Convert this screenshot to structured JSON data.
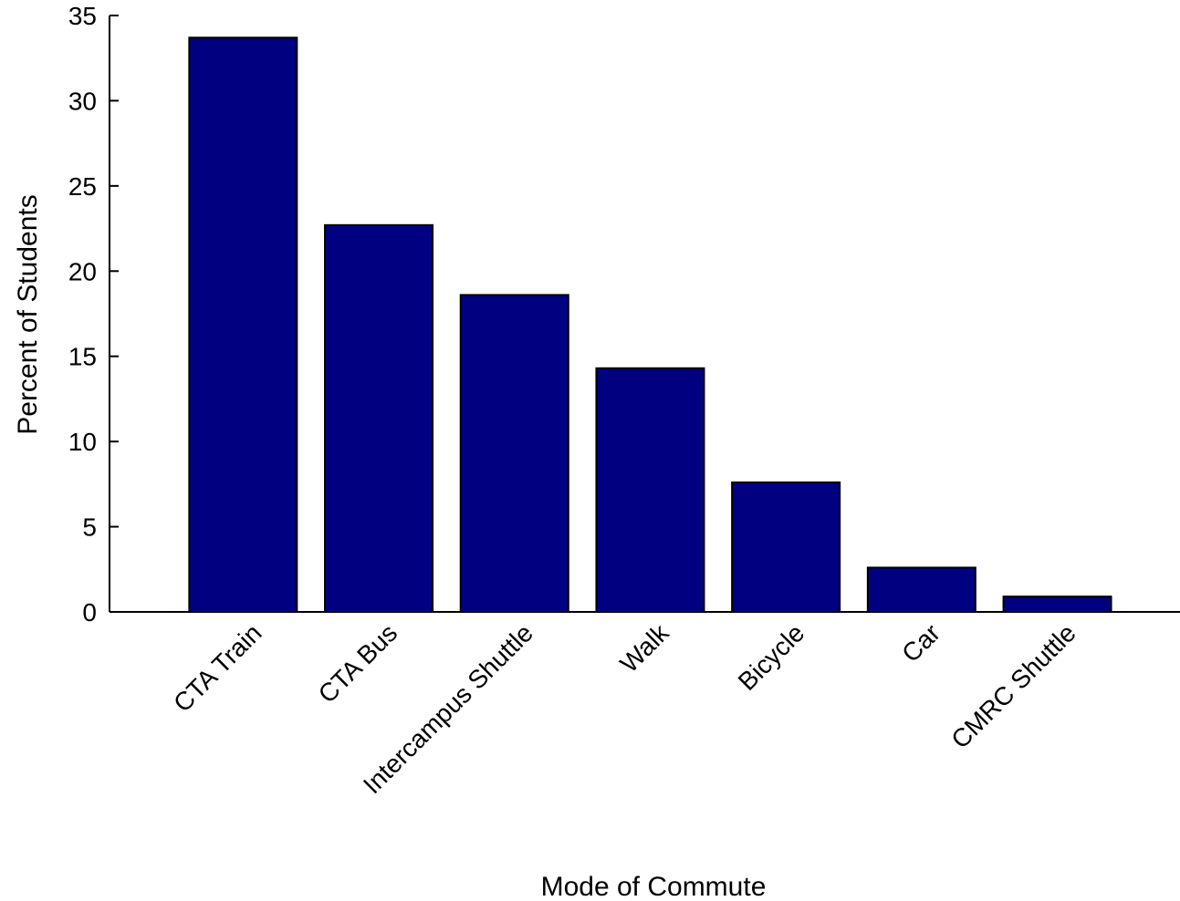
{
  "chart_data": {
    "type": "bar",
    "categories": [
      "CTA Train",
      "CTA Bus",
      "Intercampus Shuttle",
      "Walk",
      "Bicycle",
      "Car",
      "CMRC Shuttle"
    ],
    "values": [
      33.7,
      22.7,
      18.6,
      14.3,
      7.6,
      2.6,
      0.9
    ],
    "xlabel": "Mode of Commute",
    "ylabel": "Percent of Students",
    "ylim": [
      0,
      35
    ],
    "yticks": [
      0,
      5,
      10,
      15,
      20,
      25,
      30,
      35
    ],
    "grid": false,
    "bar_color": "#000080"
  }
}
